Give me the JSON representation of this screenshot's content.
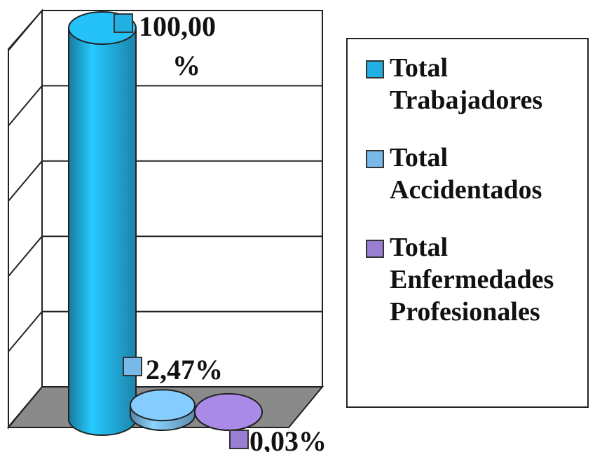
{
  "chart_data": {
    "type": "bar",
    "series": [
      {
        "name": "Total Trabajadores",
        "color": "#22b0e2",
        "values": [
          100
        ],
        "value_labels": [
          "100,00 %"
        ]
      },
      {
        "name": "Total Accidentados",
        "color": "#79b9ea",
        "values": [
          2.47
        ],
        "value_labels": [
          "2,47%"
        ]
      },
      {
        "name": "Total Enfermedades Profesionales",
        "color": "#9a7ed2",
        "values": [
          0.03
        ],
        "value_labels": [
          "0,03%"
        ]
      }
    ],
    "ylim": [
      0,
      100
    ],
    "yticks": [
      0,
      20,
      40,
      60,
      80,
      100
    ],
    "grid": true,
    "legend": "right"
  }
}
